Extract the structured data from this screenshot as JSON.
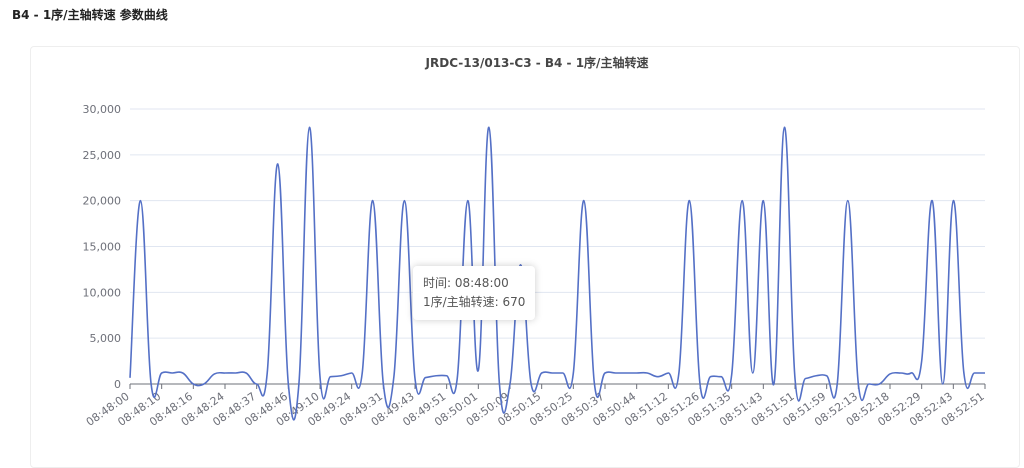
{
  "page": {
    "title": "B4 - 1序/主轴转速 参数曲线"
  },
  "chart_data": {
    "type": "line",
    "title": "JRDC-13/013-C3 - B4 - 1序/主轴转速",
    "categories": [
      "08:48:00",
      null,
      null,
      "08:48:10",
      null,
      null,
      "08:48:16",
      null,
      null,
      "08:48:24",
      null,
      null,
      "08:48:37",
      null,
      null,
      "08:48:46",
      null,
      null,
      "08:49:10",
      null,
      null,
      "08:49:24",
      null,
      null,
      "08:49:31",
      null,
      null,
      "08:49:43",
      null,
      null,
      "08:49:51",
      null,
      null,
      "08:50:01",
      null,
      null,
      "08:50:09",
      null,
      null,
      "08:50:15",
      null,
      null,
      "08:50:25",
      null,
      null,
      "08:50:37",
      null,
      null,
      "08:50:44",
      null,
      null,
      "08:51:12",
      null,
      null,
      "08:51:26",
      null,
      null,
      "08:51:35",
      null,
      null,
      "08:51:43",
      null,
      null,
      "08:51:51",
      null,
      null,
      "08:51:59",
      null,
      null,
      "08:52:13",
      null,
      null,
      "08:52:18",
      null,
      null,
      "08:52:29",
      null,
      null,
      "08:52:43",
      null,
      null,
      "08:52:51"
    ],
    "series": [
      {
        "name": "1序/主轴转速",
        "color": "#5470c6",
        "values": [
          670,
          20000,
          0,
          1200,
          1200,
          1200,
          0,
          0,
          1100,
          1200,
          1200,
          1200,
          0,
          1200,
          24000,
          0,
          0,
          28000,
          800,
          800,
          900,
          1200,
          1200,
          20000,
          0,
          800,
          20000,
          600,
          700,
          900,
          900,
          600,
          20000,
          1500,
          28000,
          0,
          0,
          13000,
          0,
          1200,
          1200,
          1200,
          1200,
          20000,
          0,
          1200,
          1200,
          1200,
          1200,
          1200,
          800,
          1200,
          1200,
          20000,
          0,
          800,
          800,
          1000,
          20000,
          1200,
          20000,
          0,
          28000,
          600,
          600,
          900,
          900,
          0,
          20000,
          0,
          0,
          0,
          1100,
          1200,
          1200,
          2500,
          20000,
          0,
          20000,
          1200,
          1200,
          1200
        ]
      }
    ],
    "ylim": [
      0,
      30000
    ],
    "yticks": [
      0,
      {
        "value": 5000,
        "label": "5,000"
      },
      {
        "value": 10000,
        "label": "10,000"
      },
      {
        "value": 15000,
        "label": "15,000"
      },
      {
        "value": 20000,
        "label": "20,000"
      },
      {
        "value": 25000,
        "label": "25,000"
      },
      {
        "value": 30000,
        "label": "30,000"
      }
    ],
    "grid": true,
    "tooltip": [
      "时间: 08:48:00",
      "1序/主轴转速: 670"
    ]
  }
}
